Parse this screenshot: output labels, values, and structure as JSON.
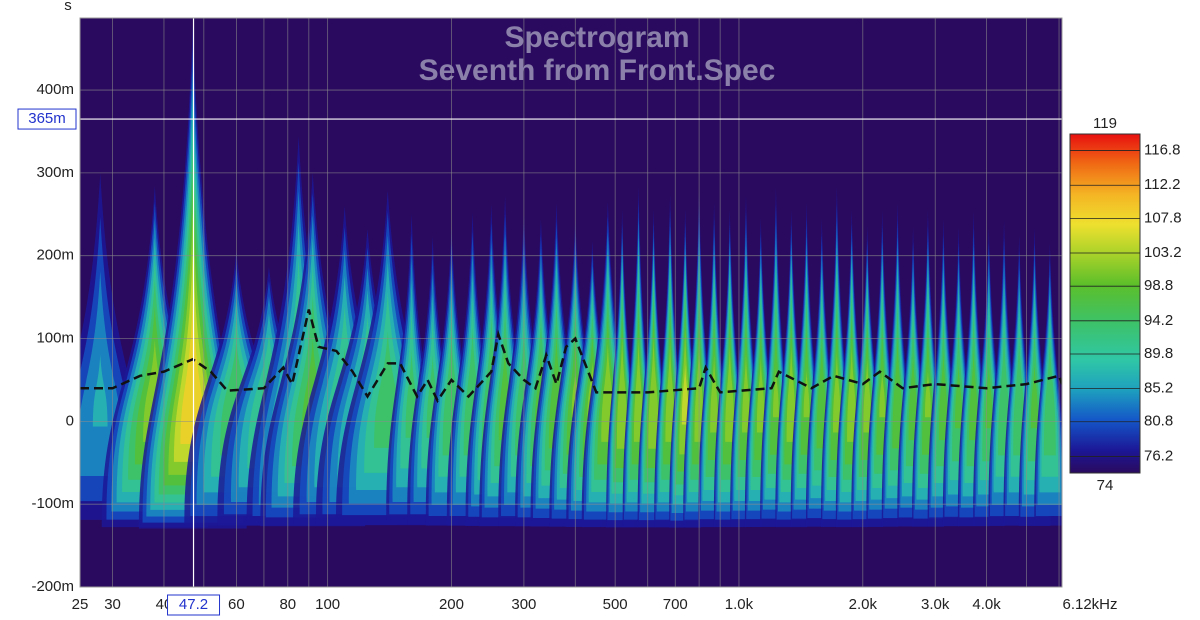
{
  "chart_data": {
    "type": "spectrogram",
    "title": "Spectrogram",
    "subtitle": "Seventh from Front.Spec",
    "y_unit": "s",
    "x_end_label": "6.12kHz",
    "log_x": true,
    "grid": true,
    "xlim": [
      25,
      6100
    ],
    "ylim": [
      -0.2,
      0.487
    ],
    "xticks": [
      25,
      30,
      40,
      60,
      80,
      100,
      200,
      300,
      500,
      700,
      {
        "value": 1000,
        "label": "1.0k"
      },
      {
        "value": 2000,
        "label": "2.0k"
      },
      {
        "value": 3000,
        "label": "3.0k"
      },
      {
        "value": 4000,
        "label": "4.0k"
      }
    ],
    "xminor": [
      50,
      70,
      90,
      400,
      600,
      800,
      900,
      5000,
      6000
    ],
    "yticks": [
      {
        "value": -0.2,
        "label": "-200m"
      },
      {
        "value": -0.1,
        "label": "-100m"
      },
      0,
      {
        "value": 0.1,
        "label": "100m"
      },
      {
        "value": 0.2,
        "label": "200m"
      },
      {
        "value": 0.3,
        "label": "300m"
      },
      {
        "value": 0.4,
        "label": "400m"
      }
    ],
    "cursor": {
      "x": 47.2,
      "x_label": "47.2",
      "y": 0.365,
      "y_label": "365m"
    },
    "colorbar": {
      "lim": [
        74,
        119
      ],
      "min_label": "74",
      "max_label": "119",
      "ticks": [
        76.2,
        80.8,
        85.2,
        89.8,
        94.2,
        98.8,
        103.2,
        107.8,
        112.2,
        116.8
      ],
      "colorscale": [
        [
          74,
          "#2a0a5e"
        ],
        [
          77,
          "#1c1796"
        ],
        [
          81,
          "#1456c8"
        ],
        [
          85,
          "#1e9fbf"
        ],
        [
          89,
          "#2fc7a6"
        ],
        [
          94,
          "#3dc268"
        ],
        [
          99,
          "#5cbf2a"
        ],
        [
          103,
          "#a8d22a"
        ],
        [
          107,
          "#eee02e"
        ],
        [
          111,
          "#f4b424"
        ],
        [
          115,
          "#f06a14"
        ],
        [
          119,
          "#e81010"
        ]
      ]
    },
    "ridges": [
      [
        28,
        0.34,
        88
      ],
      [
        38,
        0.3,
        104
      ],
      [
        47,
        0.5,
        112
      ],
      [
        60,
        0.22,
        98
      ],
      [
        72,
        0.2,
        96
      ],
      [
        85,
        0.37,
        98
      ],
      [
        92,
        0.32,
        100
      ],
      [
        110,
        0.28,
        96
      ],
      [
        125,
        0.25,
        96
      ],
      [
        140,
        0.3,
        97
      ],
      [
        160,
        0.27,
        96
      ],
      [
        180,
        0.24,
        96
      ],
      [
        200,
        0.25,
        98
      ],
      [
        225,
        0.27,
        98
      ],
      [
        250,
        0.28,
        99
      ],
      [
        270,
        0.29,
        100
      ],
      [
        300,
        0.27,
        98
      ],
      [
        330,
        0.26,
        100
      ],
      [
        360,
        0.28,
        101
      ],
      [
        400,
        0.26,
        102
      ],
      [
        440,
        0.23,
        103
      ],
      [
        480,
        0.28,
        104
      ],
      [
        520,
        0.27,
        105
      ],
      [
        570,
        0.3,
        104
      ],
      [
        620,
        0.27,
        105
      ],
      [
        680,
        0.29,
        104
      ],
      [
        740,
        0.27,
        106
      ],
      [
        800,
        0.3,
        104
      ],
      [
        870,
        0.28,
        103
      ],
      [
        950,
        0.27,
        104
      ],
      [
        1040,
        0.29,
        103
      ],
      [
        1130,
        0.26,
        103
      ],
      [
        1230,
        0.3,
        102
      ],
      [
        1340,
        0.27,
        104
      ],
      [
        1460,
        0.28,
        102
      ],
      [
        1590,
        0.26,
        101
      ],
      [
        1730,
        0.3,
        103
      ],
      [
        1880,
        0.27,
        104
      ],
      [
        2050,
        0.25,
        103
      ],
      [
        2230,
        0.27,
        102
      ],
      [
        2430,
        0.28,
        101
      ],
      [
        2650,
        0.25,
        100
      ],
      [
        2880,
        0.27,
        102
      ],
      [
        3140,
        0.26,
        100
      ],
      [
        3420,
        0.25,
        99
      ],
      [
        3720,
        0.27,
        100
      ],
      [
        4050,
        0.25,
        99
      ],
      [
        4410,
        0.26,
        98
      ],
      [
        4800,
        0.24,
        98
      ],
      [
        5230,
        0.25,
        99
      ],
      [
        5700,
        0.23,
        98
      ]
    ],
    "peak_line": {
      "x": [
        25,
        30,
        35,
        40,
        47,
        52,
        57,
        70,
        78,
        82,
        90,
        95,
        105,
        115,
        125,
        140,
        150,
        165,
        175,
        185,
        200,
        220,
        250,
        260,
        275,
        300,
        320,
        340,
        360,
        380,
        400,
        430,
        450,
        600,
        800,
        830,
        900,
        1200,
        1250,
        1500,
        1700,
        2000,
        2200,
        2500,
        3000,
        4000,
        5000,
        6000,
        6100
      ],
      "values": [
        0.04,
        0.04,
        0.055,
        0.06,
        0.075,
        0.06,
        0.037,
        0.04,
        0.065,
        0.045,
        0.135,
        0.09,
        0.085,
        0.06,
        0.03,
        0.07,
        0.07,
        0.03,
        0.05,
        0.025,
        0.05,
        0.03,
        0.06,
        0.105,
        0.07,
        0.05,
        0.04,
        0.08,
        0.045,
        0.09,
        0.1,
        0.06,
        0.035,
        0.035,
        0.04,
        0.065,
        0.035,
        0.04,
        0.06,
        0.04,
        0.055,
        0.045,
        0.06,
        0.04,
        0.045,
        0.04,
        0.045,
        0.055,
        0.045
      ]
    }
  }
}
